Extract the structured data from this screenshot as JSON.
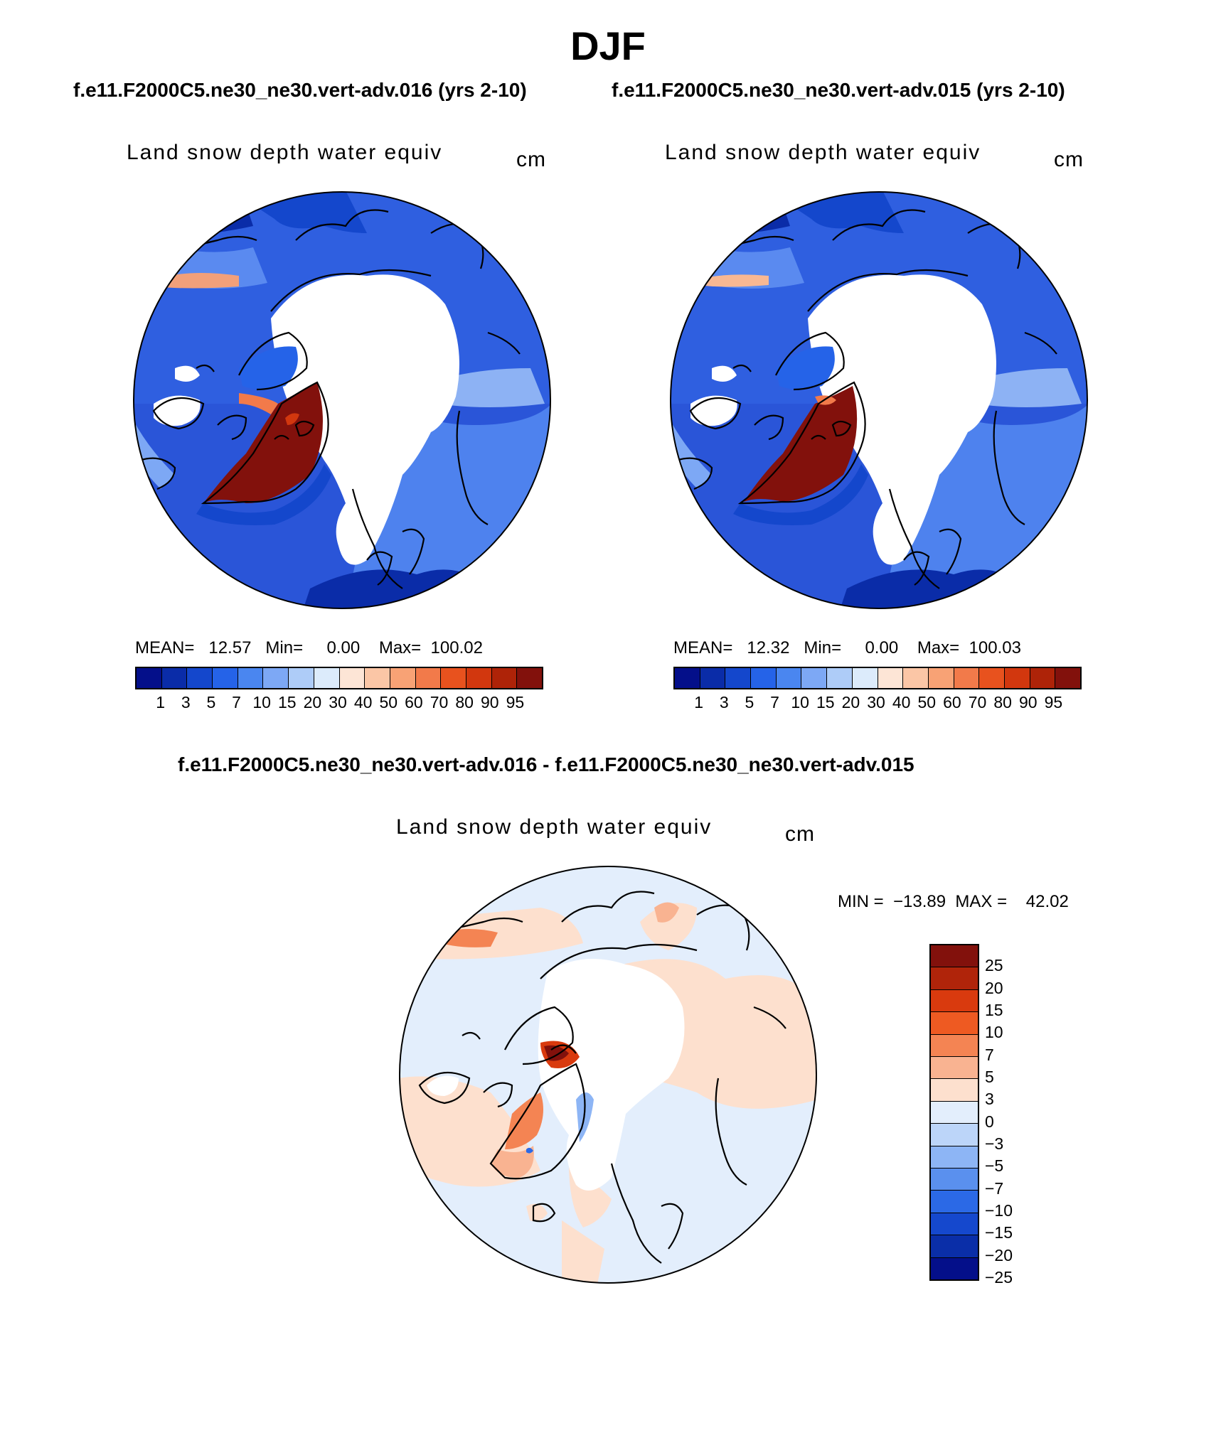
{
  "page": {
    "title": "DJF",
    "case_a": "f.e11.F2000C5.ne30_ne30.vert-adv.016 (yrs 2-10)",
    "case_b": "f.e11.F2000C5.ne30_ne30.vert-adv.015 (yrs 2-10)",
    "diff_title": "f.e11.F2000C5.ne30_ne30.vert-adv.016 - f.e11.F2000C5.ne30_ne30.vert-adv.015"
  },
  "panels": [
    {
      "variable": "Land snow depth water equiv",
      "units": "cm",
      "stats": "MEAN=   12.57   Min=     0.00    Max=  100.02"
    },
    {
      "variable": "Land snow depth water equiv",
      "units": "cm",
      "stats": "MEAN=   12.32   Min=     0.00    Max=  100.03"
    }
  ],
  "diff_panel": {
    "variable": "Land snow depth water equiv",
    "units": "cm",
    "stats": "MIN =  −13.89  MAX =    42.02"
  },
  "colorbar_main": {
    "colors": [
      "#040F8A",
      "#0A2CA8",
      "#1447CC",
      "#2563E8",
      "#4A86F0",
      "#7DA8F5",
      "#AECCF8",
      "#DCEBFB",
      "#FDE5D6",
      "#FBC6A6",
      "#F8A275",
      "#F27A4A",
      "#E8521E",
      "#D2370E",
      "#AE2308",
      "#82110C"
    ],
    "labels": [
      "1",
      "3",
      "5",
      "7",
      "10",
      "15",
      "20",
      "30",
      "40",
      "50",
      "60",
      "70",
      "80",
      "90",
      "95"
    ]
  },
  "colorbar_diff": {
    "colors": [
      "#82110C",
      "#B0240A",
      "#D93A0E",
      "#EE5A22",
      "#F48453",
      "#F9B391",
      "#FDE0CE",
      "#E3EEFC",
      "#BCD5F9",
      "#8DB5F5",
      "#5A90EE",
      "#2B69E6",
      "#1548CD",
      "#0A2EA8",
      "#040F8A"
    ],
    "labels": [
      "25",
      "20",
      "15",
      "10",
      "7",
      "5",
      "3",
      "0",
      "−3",
      "−5",
      "−7",
      "−10",
      "−15",
      "−20",
      "−25"
    ]
  }
}
